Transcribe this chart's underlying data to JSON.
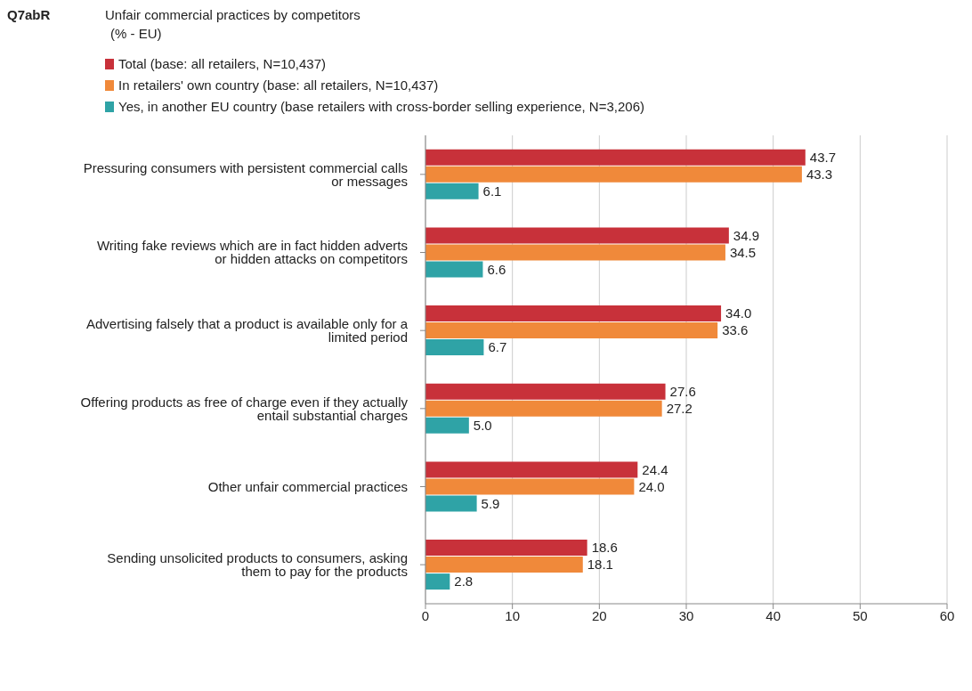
{
  "chart_data": {
    "type": "bar",
    "orientation": "horizontal",
    "annotations": [
      "Q7abR"
    ],
    "title": "Unfair commercial practices by competitors",
    "subtitle": "(% - EU)",
    "categories": [
      "Pressuring consumers with persistent commercial calls or messages",
      "Writing fake reviews which are in fact hidden adverts or hidden attacks on competitors",
      "Advertising falsely that a product is available only for a limited period",
      "Offering products as free of charge even if they actually entail substantial charges",
      "Other unfair commercial practices",
      "Sending unsolicited products to consumers, asking them to pay for the products"
    ],
    "series": [
      {
        "name": "Total (base: all retailers, N=10,437)",
        "color": "#c8313a",
        "values": [
          43.7,
          34.9,
          34.0,
          27.6,
          24.4,
          18.6
        ],
        "value_labels": [
          "43.7",
          "34.9",
          "34.0",
          "27.6",
          "24.4",
          "18.6"
        ]
      },
      {
        "name": "In retailers' own country (base: all retailers, N=10,437)",
        "color": "#f0893a",
        "values": [
          43.3,
          34.5,
          33.6,
          27.2,
          24.0,
          18.1
        ],
        "value_labels": [
          "43.3",
          "34.5",
          "33.6",
          "27.2",
          "24.0",
          "18.1"
        ]
      },
      {
        "name": "Yes, in another EU country (base retailers with cross-border selling experience, N=3,206)",
        "color": "#2fa3a6",
        "values": [
          6.1,
          6.6,
          6.7,
          5.0,
          5.9,
          2.8
        ],
        "value_labels": [
          "6.1",
          "6.6",
          "6.7",
          "5.0",
          "5.9",
          "2.8"
        ]
      }
    ],
    "xlim": [
      0,
      60
    ],
    "xticks": [
      0,
      10,
      20,
      30,
      40,
      50,
      60
    ],
    "grid": "x",
    "legend": "top left"
  }
}
